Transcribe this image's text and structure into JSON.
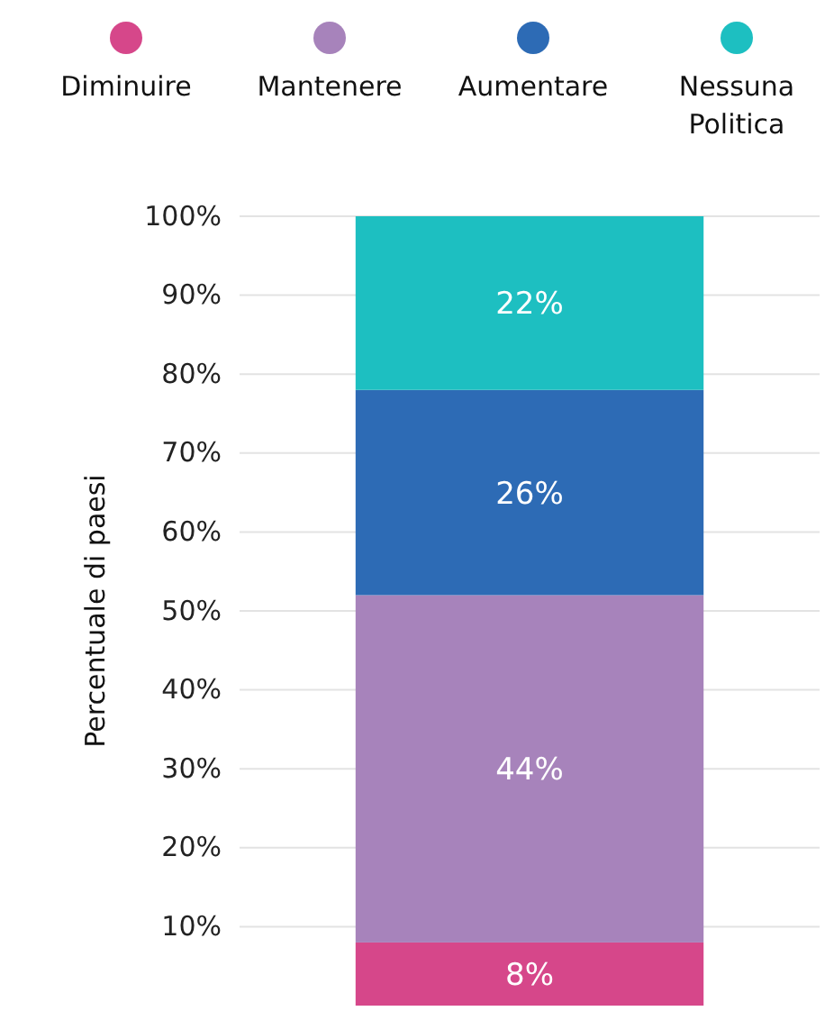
{
  "chart_data": {
    "type": "bar",
    "stacked": true,
    "ylabel": "Percentuale di paesi",
    "categories": [
      null
    ],
    "series": [
      {
        "name": "Diminuire",
        "color": "#d6478a",
        "values": [
          8
        ],
        "value_labels": [
          "8%"
        ]
      },
      {
        "name": "Mantenere",
        "color": "#a783bb",
        "values": [
          44
        ],
        "value_labels": [
          "44%"
        ]
      },
      {
        "name": "Aumentare",
        "color": "#2d6bb5",
        "values": [
          26
        ],
        "value_labels": [
          "26%"
        ]
      },
      {
        "name": "Nessuna Politica",
        "color": "#1dbfc1",
        "values": [
          22
        ],
        "value_labels": [
          "22%"
        ]
      }
    ],
    "ylim": [
      0,
      100
    ],
    "yticks": [
      {
        "value": 10,
        "label": "10%"
      },
      {
        "value": 20,
        "label": "20%"
      },
      {
        "value": 30,
        "label": "30%"
      },
      {
        "value": 40,
        "label": "40%"
      },
      {
        "value": 50,
        "label": "50%"
      },
      {
        "value": 60,
        "label": "60%"
      },
      {
        "value": 70,
        "label": "70%"
      },
      {
        "value": 80,
        "label": "80%"
      },
      {
        "value": 90,
        "label": "90%"
      },
      {
        "value": 100,
        "label": "100%"
      }
    ],
    "grid": "y",
    "legend": "top"
  }
}
